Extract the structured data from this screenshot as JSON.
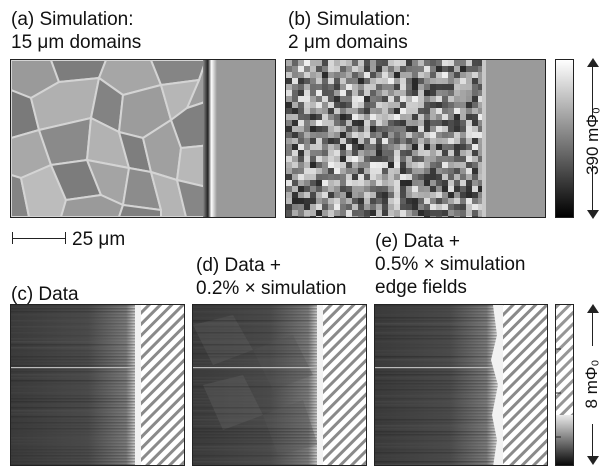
{
  "panels": {
    "a": {
      "line1": "(a) Simulation:",
      "line2": "15 μm domains"
    },
    "b": {
      "line1": "(b) Simulation:",
      "line2": "2 μm domains"
    },
    "c": {
      "line1": "(c) Data"
    },
    "d": {
      "line1": "(d) Data +",
      "line2": "0.2% × simulation"
    },
    "e": {
      "line1": "(e) Data +",
      "line2": "0.5% × simulation",
      "line3": "edge fields"
    }
  },
  "scale_bar": {
    "label": "25 μm"
  },
  "colorbar_top": {
    "label": "390 mΦ₀"
  },
  "colorbar_bottom": {
    "label": "8 mΦ₀"
  }
}
